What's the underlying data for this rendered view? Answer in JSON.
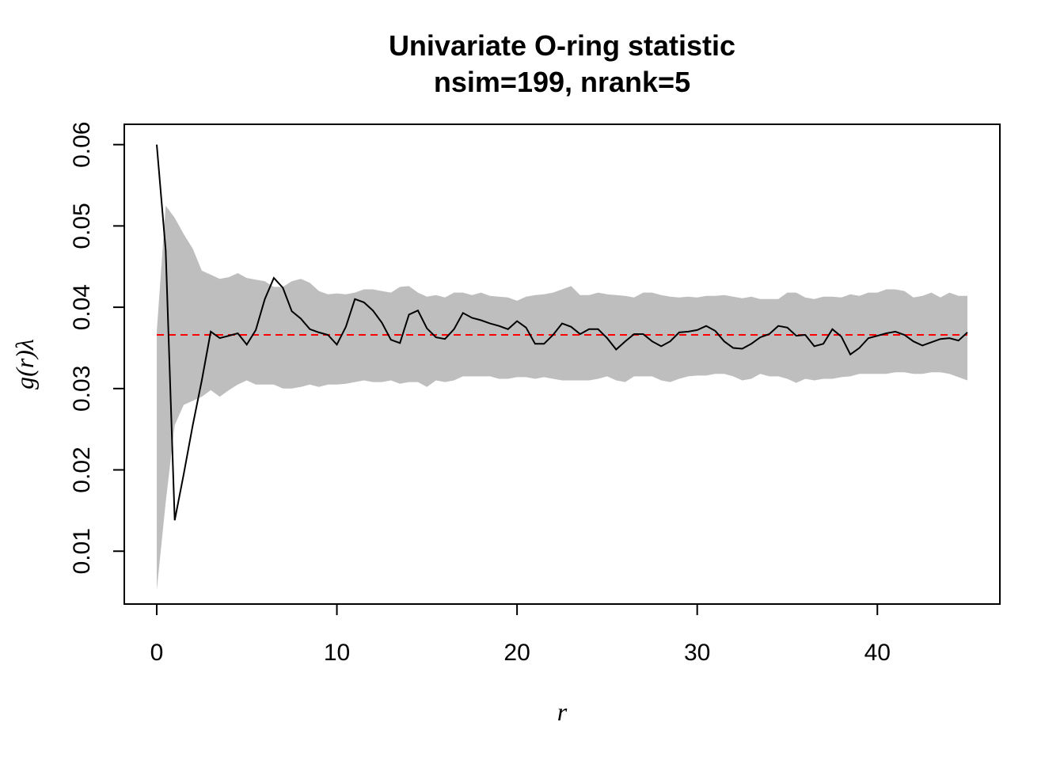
{
  "chart_data": {
    "type": "line",
    "title": "Univariate O-ring statistic",
    "subtitle": "nsim=199, nrank=5",
    "xlabel": "r",
    "ylabel": "g(r)λ",
    "xlim": [
      -1.8,
      46.8
    ],
    "ylim": [
      0.0035,
      0.0625
    ],
    "x_ticks": [
      0,
      10,
      20,
      30,
      40
    ],
    "x_tick_labels": [
      "0",
      "10",
      "20",
      "30",
      "40"
    ],
    "y_ticks": [
      0.01,
      0.02,
      0.03,
      0.04,
      0.05,
      0.06
    ],
    "y_tick_labels": [
      "0.01",
      "0.02",
      "0.03",
      "0.04",
      "0.05",
      "0.06"
    ],
    "grid": false,
    "legend": "none",
    "x": [
      0,
      0.5,
      1,
      1.5,
      2,
      2.5,
      3,
      3.5,
      4,
      4.5,
      5,
      5.5,
      6,
      6.5,
      7,
      7.5,
      8,
      8.5,
      9,
      9.5,
      10,
      10.5,
      11,
      11.5,
      12,
      12.5,
      13,
      13.5,
      14,
      14.5,
      15,
      15.5,
      16,
      16.5,
      17,
      17.5,
      18,
      18.5,
      19,
      19.5,
      20,
      20.5,
      21,
      21.5,
      22,
      22.5,
      23,
      23.5,
      24,
      24.5,
      25,
      25.5,
      26,
      26.5,
      27,
      27.5,
      28,
      28.5,
      29,
      29.5,
      30,
      30.5,
      31,
      31.5,
      32,
      32.5,
      33,
      33.5,
      34,
      34.5,
      35,
      35.5,
      36,
      36.5,
      37,
      37.5,
      38,
      38.5,
      39,
      39.5,
      40,
      40.5,
      41,
      41.5,
      42,
      42.5,
      43,
      43.5,
      44,
      44.5,
      45
    ],
    "series": [
      {
        "role": "observed",
        "color": "#000000",
        "values": [
          0.06,
          0.047,
          0.0138,
          0.0195,
          0.0255,
          0.031,
          0.037,
          0.0362,
          0.0365,
          0.0368,
          0.0354,
          0.0372,
          0.041,
          0.0436,
          0.0424,
          0.0395,
          0.0386,
          0.0373,
          0.0369,
          0.0366,
          0.0354,
          0.0376,
          0.041,
          0.0406,
          0.0396,
          0.0381,
          0.036,
          0.0356,
          0.0391,
          0.0396,
          0.0374,
          0.0363,
          0.0361,
          0.0373,
          0.0393,
          0.0387,
          0.0384,
          0.038,
          0.0377,
          0.0373,
          0.0383,
          0.0375,
          0.0355,
          0.0355,
          0.0366,
          0.038,
          0.0376,
          0.0367,
          0.0373,
          0.0373,
          0.0362,
          0.0348,
          0.0358,
          0.0367,
          0.0367,
          0.0358,
          0.0352,
          0.0358,
          0.0369,
          0.037,
          0.0372,
          0.0377,
          0.0371,
          0.0358,
          0.035,
          0.0349,
          0.0355,
          0.0363,
          0.0367,
          0.0377,
          0.0375,
          0.0365,
          0.0366,
          0.0352,
          0.0355,
          0.0373,
          0.0364,
          0.0342,
          0.035,
          0.0362,
          0.0365,
          0.0368,
          0.037,
          0.0366,
          0.0358,
          0.0353,
          0.0357,
          0.0361,
          0.0362,
          0.0359,
          0.0369
        ]
      },
      {
        "role": "theoretical",
        "color": "#ff0000",
        "values": [
          0.0366,
          0.0366,
          0.0366,
          0.0366,
          0.0366,
          0.0366,
          0.0366,
          0.0366,
          0.0366,
          0.0366,
          0.0366,
          0.0366,
          0.0366,
          0.0366,
          0.0366,
          0.0366,
          0.0366,
          0.0366,
          0.0366,
          0.0366,
          0.0366,
          0.0366,
          0.0366,
          0.0366,
          0.0366,
          0.0366,
          0.0366,
          0.0366,
          0.0366,
          0.0366,
          0.0366,
          0.0366,
          0.0366,
          0.0366,
          0.0366,
          0.0366,
          0.0366,
          0.0366,
          0.0366,
          0.0366,
          0.0366,
          0.0366,
          0.0366,
          0.0366,
          0.0366,
          0.0366,
          0.0366,
          0.0366,
          0.0366,
          0.0366,
          0.0366,
          0.0366,
          0.0366,
          0.0366,
          0.0366,
          0.0366,
          0.0366,
          0.0366,
          0.0366,
          0.0366,
          0.0366,
          0.0366,
          0.0366,
          0.0366,
          0.0366,
          0.0366,
          0.0366,
          0.0366,
          0.0366,
          0.0366,
          0.0366,
          0.0366,
          0.0366,
          0.0366,
          0.0366,
          0.0366,
          0.0366,
          0.0366,
          0.0366,
          0.0366,
          0.0366,
          0.0366,
          0.0366,
          0.0366,
          0.0366,
          0.0366,
          0.0366,
          0.0366,
          0.0366,
          0.0366,
          0.0366
        ]
      }
    ],
    "envelope": {
      "color": "#bebebe",
      "lower": [
        0.0052,
        0.016,
        0.0255,
        0.028,
        0.0285,
        0.029,
        0.0298,
        0.029,
        0.0298,
        0.0305,
        0.031,
        0.0305,
        0.0305,
        0.0305,
        0.03,
        0.03,
        0.0302,
        0.0305,
        0.0302,
        0.0305,
        0.0305,
        0.0306,
        0.0308,
        0.031,
        0.0308,
        0.0308,
        0.031,
        0.0306,
        0.0308,
        0.0308,
        0.0302,
        0.031,
        0.0308,
        0.031,
        0.0315,
        0.0315,
        0.0315,
        0.0315,
        0.0312,
        0.0312,
        0.0314,
        0.0314,
        0.0312,
        0.0314,
        0.0312,
        0.031,
        0.031,
        0.031,
        0.031,
        0.0312,
        0.0315,
        0.031,
        0.0308,
        0.0315,
        0.0315,
        0.0315,
        0.031,
        0.0308,
        0.0312,
        0.0315,
        0.0316,
        0.0316,
        0.0318,
        0.0318,
        0.0315,
        0.031,
        0.0312,
        0.0318,
        0.0315,
        0.0315,
        0.0312,
        0.0307,
        0.0312,
        0.031,
        0.0312,
        0.0312,
        0.0314,
        0.0315,
        0.0318,
        0.0318,
        0.0318,
        0.0318,
        0.032,
        0.032,
        0.0318,
        0.0318,
        0.032,
        0.032,
        0.0318,
        0.0314,
        0.031
      ],
      "upper": [
        0.037,
        0.0525,
        0.051,
        0.049,
        0.0472,
        0.0445,
        0.044,
        0.0435,
        0.0437,
        0.0442,
        0.0436,
        0.0434,
        0.0432,
        0.0425,
        0.0425,
        0.0432,
        0.0435,
        0.043,
        0.042,
        0.0416,
        0.0417,
        0.0416,
        0.0418,
        0.0422,
        0.0422,
        0.042,
        0.0418,
        0.0425,
        0.0426,
        0.0418,
        0.0413,
        0.0415,
        0.0412,
        0.0418,
        0.0418,
        0.0415,
        0.0418,
        0.0414,
        0.0413,
        0.0412,
        0.0408,
        0.0413,
        0.0415,
        0.0416,
        0.0418,
        0.0422,
        0.0426,
        0.0415,
        0.0415,
        0.0418,
        0.0416,
        0.0415,
        0.0414,
        0.0412,
        0.0418,
        0.0418,
        0.0415,
        0.0413,
        0.0412,
        0.0413,
        0.0412,
        0.0414,
        0.0414,
        0.0415,
        0.0413,
        0.0411,
        0.0413,
        0.041,
        0.041,
        0.041,
        0.0418,
        0.0418,
        0.0412,
        0.041,
        0.0413,
        0.0413,
        0.0412,
        0.0416,
        0.0414,
        0.0418,
        0.0418,
        0.0422,
        0.0422,
        0.042,
        0.0412,
        0.0414,
        0.0418,
        0.0412,
        0.0418,
        0.0414,
        0.0414
      ]
    }
  }
}
